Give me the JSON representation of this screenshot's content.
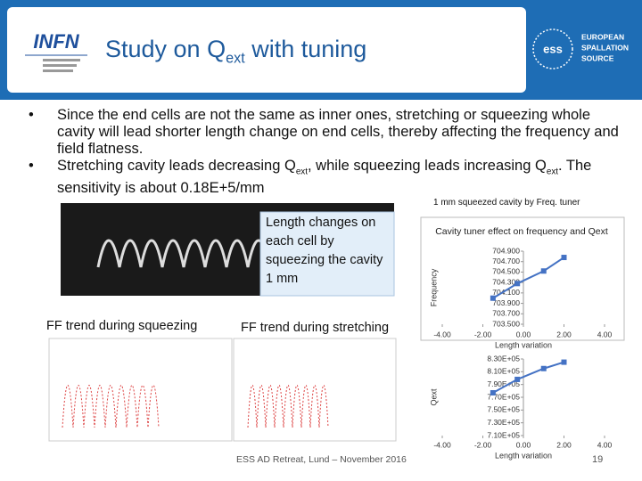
{
  "header": {
    "title": [
      "Study on Q",
      "ext",
      " with tuning"
    ],
    "logo_left": "INFN",
    "logo_right": [
      "EUROPEAN",
      "SPALLATION",
      "SOURCE"
    ]
  },
  "bullets": [
    [
      "Since the end cells are not the same as inner ones, stretching or squeezing whole cavity will lead shorter length change on end cells, thereby affecting the frequency and field flatness."
    ],
    [
      "Stretching cavity leads decreasing Q",
      "ext",
      ", while squeezing leads increasing Q",
      "ext",
      ". The sensitivity is about 0.18E+5/mm"
    ]
  ],
  "caption_cavity": "1 mm squeezed cavity by Freq. tuner",
  "callout": "Length changes on each cell by squeezing the cavity 1 mm",
  "caption_squeezing": "FF trend during squeezing",
  "caption_stretching": "FF trend during stretching",
  "footer": "ESS AD Retreat, Lund – November 2016",
  "page_number": "19",
  "chart_data": [
    {
      "type": "line",
      "title": "Cavity tuner effect on frequency and Qext",
      "ylabel": "Frequency",
      "xlabel": "Length variation",
      "x": [
        -1.5,
        -0.3,
        1.0,
        2.0
      ],
      "series": [
        {
          "color": "#4472c4",
          "values": [
            704.0,
            704.28,
            704.52,
            704.78
          ]
        }
      ],
      "xlim": [
        -4,
        4
      ],
      "xticks": [
        {
          "value": -4,
          "label": "-4.00"
        },
        {
          "value": -2,
          "label": "-2.00"
        },
        {
          "value": 0,
          "label": "0.00"
        },
        {
          "value": 2,
          "label": "2.00"
        },
        {
          "value": 4,
          "label": "4.00"
        }
      ],
      "ylim": [
        703.5,
        704.9
      ],
      "yticks": [
        {
          "value": 703.5,
          "label": "703.500"
        },
        {
          "value": 703.7,
          "label": "703.700"
        },
        {
          "value": 703.9,
          "label": "703.900"
        },
        {
          "value": 704.1,
          "label": "704.100"
        },
        {
          "value": 704.3,
          "label": "704.300"
        },
        {
          "value": 704.5,
          "label": "704.500"
        },
        {
          "value": 704.7,
          "label": "704.700"
        },
        {
          "value": 704.9,
          "label": "704.900"
        }
      ]
    },
    {
      "type": "line",
      "ylabel": "Qext",
      "xlabel": "Length variation",
      "x": [
        -1.5,
        -0.3,
        1.0,
        2.0
      ],
      "series": [
        {
          "color": "#4472c4",
          "values": [
            777000,
            798000,
            815000,
            825000
          ]
        }
      ],
      "xlim": [
        -4,
        4
      ],
      "xticks": [
        {
          "value": -4,
          "label": "-4.00"
        },
        {
          "value": -2,
          "label": "-2.00"
        },
        {
          "value": 0,
          "label": "0.00"
        },
        {
          "value": 2,
          "label": "2.00"
        },
        {
          "value": 4,
          "label": "4.00"
        }
      ],
      "ylim": [
        710000,
        830000
      ],
      "yticks": [
        {
          "value": 710000,
          "label": "7.10E+05"
        },
        {
          "value": 730000,
          "label": "7.30E+05"
        },
        {
          "value": 750000,
          "label": "7.50E+05"
        },
        {
          "value": 770000,
          "label": "7.70E+05"
        },
        {
          "value": 790000,
          "label": "7.90E+05"
        },
        {
          "value": 810000,
          "label": "8.10E+05"
        },
        {
          "value": 830000,
          "label": "8.30E+05"
        }
      ]
    }
  ]
}
